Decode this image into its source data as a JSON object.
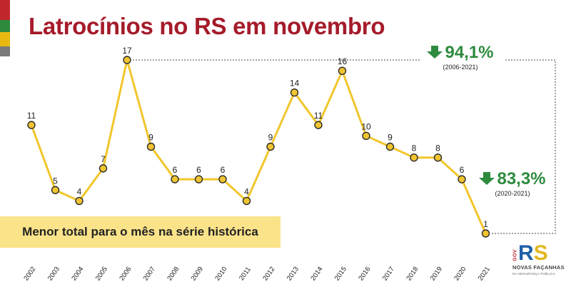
{
  "colors": {
    "flag_red": "#c1272d",
    "flag_green": "#2e8b3e",
    "flag_yellow": "#e8b911",
    "flag_gray": "#7a7a7a",
    "title": "#a51b2a",
    "line": "#f2c62b",
    "marker_fill": "#f0c430",
    "marker_stroke": "#2b2b2b",
    "down_green": "#2e8b3e",
    "highlight_bg": "#fbe38a",
    "connector": "#444444"
  },
  "title": "Latrocínios no RS em novembro",
  "callouts": [
    {
      "icon": "down-arrow-icon",
      "value": "94,1%",
      "period": "(2006-2021)"
    },
    {
      "icon": "down-arrow-icon",
      "value": "83,3%",
      "period": "(2020-2021)"
    }
  ],
  "highlight": "Menor total para o mês na série histórica",
  "logo": {
    "gov": "GOV",
    "rs": "RS",
    "tagline": "NOVAS FAÇANHAS",
    "subline": "NA SEGURANÇA PÚBLICA"
  },
  "chart_data": {
    "type": "line",
    "title": "Latrocínios no RS em novembro",
    "xlabel": "",
    "ylabel": "",
    "categories": [
      "2002",
      "2003",
      "2004",
      "2005",
      "2006",
      "2007",
      "2008",
      "2009",
      "2010",
      "2011",
      "2012",
      "2013",
      "2014",
      "2015",
      "2016",
      "2017",
      "2018",
      "2019",
      "2020",
      "2021"
    ],
    "series": [
      {
        "values": [
          11,
          5,
          4,
          7,
          17,
          9,
          6,
          6,
          6,
          4,
          9,
          14,
          11,
          16,
          10,
          9,
          8,
          8,
          6,
          1
        ]
      }
    ],
    "ylim": [
      1,
      17
    ],
    "grid": false,
    "axis_visible": false,
    "data_labels": true
  }
}
